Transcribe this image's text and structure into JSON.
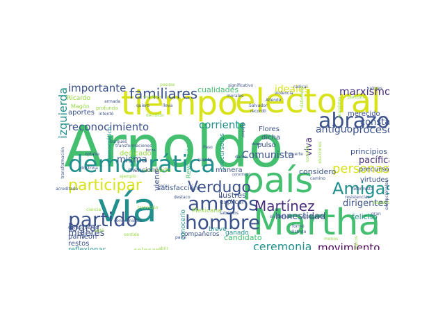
{
  "palette": {
    "yellow": "#d8e219",
    "green": "#44bf70",
    "teal": "#21908d",
    "blue": "#3b528b",
    "navy": "#472d7b",
    "purple": "#440154",
    "lime": "#95d840",
    "aqua": "#2ab07f"
  },
  "words": [
    {
      "t": "Arnoldo",
      "c": "green"
    },
    {
      "t": "vía",
      "c": "teal"
    },
    {
      "t": "tiempo",
      "c": "yellow"
    },
    {
      "t": "electoral",
      "c": "yellow"
    },
    {
      "t": "Martha",
      "c": "green"
    },
    {
      "t": "país",
      "c": "green"
    },
    {
      "t": "democrática",
      "c": "teal"
    },
    {
      "t": "abrazo",
      "c": "blue"
    },
    {
      "t": "amigos",
      "c": "blue"
    },
    {
      "t": "hombre",
      "c": "blue"
    },
    {
      "t": "partido",
      "c": "blue"
    },
    {
      "t": "familiares",
      "c": "blue"
    },
    {
      "t": "Amigas",
      "c": "teal"
    },
    {
      "t": "Martínez",
      "c": "navy"
    },
    {
      "t": "participar",
      "c": "yellow"
    },
    {
      "t": "Verdugo",
      "c": "blue"
    },
    {
      "t": "personas",
      "c": "yellow"
    },
    {
      "t": "ceremonia",
      "c": "teal"
    },
    {
      "t": "movimiento",
      "c": "purple"
    },
    {
      "t": "lograr",
      "c": "blue"
    },
    {
      "t": "marxismo",
      "c": "navy"
    },
    {
      "t": "reconocimiento",
      "c": "blue"
    },
    {
      "t": "importante",
      "c": "blue"
    },
    {
      "t": "proceso",
      "c": "blue"
    },
    {
      "t": "ideales",
      "c": "yellow"
    },
    {
      "t": "corriente",
      "c": "teal"
    },
    {
      "t": "izquierda",
      "c": "teal"
    },
    {
      "t": "dirigentes",
      "c": "blue"
    },
    {
      "t": "pacífica",
      "c": "navy"
    },
    {
      "t": "honestidad",
      "c": "blue"
    },
    {
      "t": "mujeres",
      "c": "blue"
    },
    {
      "t": "consta",
      "c": "blue"
    },
    {
      "t": "Comunista",
      "c": "blue"
    },
    {
      "t": "antiguo",
      "c": "blue"
    },
    {
      "t": "principios",
      "c": "blue"
    },
    {
      "t": "candidato",
      "c": "green"
    },
    {
      "t": "felicito",
      "c": "teal"
    },
    {
      "t": "misma",
      "c": "blue"
    },
    {
      "t": "viva",
      "c": "navy"
    },
    {
      "t": "cualidades",
      "c": "green"
    },
    {
      "t": "viene",
      "c": "blue"
    },
    {
      "t": "Flores",
      "c": "blue"
    },
    {
      "t": "dicha",
      "c": "blue"
    },
    {
      "t": "pulso",
      "c": "blue"
    },
    {
      "t": "merecido",
      "c": "blue"
    },
    {
      "t": "precursor",
      "c": "blue"
    },
    {
      "t": "virtudes",
      "c": "blue"
    },
    {
      "t": "ilustres",
      "c": "blue"
    },
    {
      "t": "manera",
      "c": "blue"
    },
    {
      "t": "considero",
      "c": "blue"
    },
    {
      "t": "satisfacción",
      "c": "blue"
    },
    {
      "t": "dedicado",
      "c": "lime"
    },
    {
      "t": "aportes",
      "c": "blue"
    },
    {
      "t": "restos",
      "c": "blue"
    },
    {
      "t": "reflexionar",
      "c": "teal"
    },
    {
      "t": "colocar",
      "c": "lime"
    },
    {
      "t": "compañeros",
      "c": "blue"
    },
    {
      "t": "panteón",
      "c": "blue"
    },
    {
      "t": "breve",
      "c": "teal"
    },
    {
      "t": "ganado",
      "c": "teal"
    },
    {
      "t": "explicar",
      "c": "blue"
    },
    {
      "t": "Mexicana",
      "c": "lime"
    },
    {
      "t": "Revolución",
      "c": "green"
    },
    {
      "t": "precursores",
      "c": "teal"
    },
    {
      "t": "conocerlo",
      "c": "teal"
    },
    {
      "t": "estimado",
      "c": "lime"
    },
    {
      "t": "democrático",
      "c": "teal"
    },
    {
      "t": "mencionó",
      "c": "blue"
    },
    {
      "t": "Ricardo",
      "c": "lime"
    },
    {
      "t": "Magón",
      "c": "lime"
    },
    {
      "t": "armada",
      "c": "blue"
    },
    {
      "t": "profunda",
      "c": "lime"
    },
    {
      "t": "intentó",
      "c": "blue"
    },
    {
      "t": "morales",
      "c": "blue"
    },
    {
      "t": "significativo",
      "c": "blue"
    },
    {
      "t": "radical",
      "c": "blue"
    },
    {
      "t": "valores",
      "c": "blue"
    },
    {
      "t": "Allende",
      "c": "blue"
    },
    {
      "t": "Salvador",
      "c": "blue"
    },
    {
      "t": "recordó",
      "c": "blue"
    },
    {
      "t": "pequeño",
      "c": "blue"
    },
    {
      "t": "formó",
      "c": "blue"
    },
    {
      "t": "distinto",
      "c": "blue"
    },
    {
      "t": "reformista",
      "c": "blue"
    },
    {
      "t": "resistencias",
      "c": "blue"
    },
    {
      "t": "olvidemos",
      "c": "blue"
    },
    {
      "t": "estructural",
      "c": "blue"
    },
    {
      "t": "optaba",
      "c": "blue"
    },
    {
      "t": "doctrina",
      "c": "blue"
    },
    {
      "t": "burgués",
      "c": "blue"
    },
    {
      "t": "conocimiento",
      "c": "blue"
    },
    {
      "t": "transformaciones",
      "c": "blue"
    },
    {
      "t": "toca",
      "c": "blue"
    },
    {
      "t": "destaco",
      "c": "blue"
    },
    {
      "t": "sabemos",
      "c": "blue"
    },
    {
      "t": "compañeras",
      "c": "blue"
    },
    {
      "t": "violencia",
      "c": "blue"
    },
    {
      "t": "deben",
      "c": "blue"
    },
    {
      "t": "fecha",
      "c": "blue"
    },
    {
      "t": "Paso",
      "c": "blue"
    },
    {
      "t": "camino",
      "c": "blue"
    },
    {
      "t": "lleva",
      "c": "blue"
    },
    {
      "t": "cuenta",
      "c": "blue"
    },
    {
      "t": "muerte",
      "c": "blue"
    },
    {
      "t": "constituyó",
      "c": "blue"
    },
    {
      "t": "transformación",
      "c": "blue"
    },
    {
      "t": "acreditada",
      "c": "blue"
    },
    {
      "t": "ciencia",
      "c": "lime"
    },
    {
      "t": "transición",
      "c": "lime"
    },
    {
      "t": "excepcionales",
      "c": "blue"
    },
    {
      "t": "posible",
      "c": "lime"
    },
    {
      "t": "socialismo",
      "c": "lime"
    },
    {
      "t": "distintivos",
      "c": "lime"
    },
    {
      "t": "marxistas",
      "c": "lime"
    },
    {
      "t": "sociales",
      "c": "lime"
    },
    {
      "t": "elecciones",
      "c": "lime"
    },
    {
      "t": "abrir",
      "c": "lime"
    },
    {
      "t": "parte",
      "c": "blue"
    },
    {
      "t": "gran",
      "c": "blue"
    },
    {
      "t": "quiero",
      "c": "blue"
    },
    {
      "t": "ejemplo",
      "c": "lime"
    },
    {
      "t": "optó",
      "c": "lime"
    },
    {
      "t": "menos",
      "c": "lime"
    },
    {
      "t": "sentido",
      "c": "lime"
    },
    {
      "t": "darse",
      "c": "blue"
    },
    {
      "t": "maestro",
      "c": "lime"
    },
    {
      "t": "decidido",
      "c": "lime"
    },
    {
      "t": "partidos",
      "c": "lime"
    },
    {
      "t": "ideológicos",
      "c": "lime"
    }
  ]
}
